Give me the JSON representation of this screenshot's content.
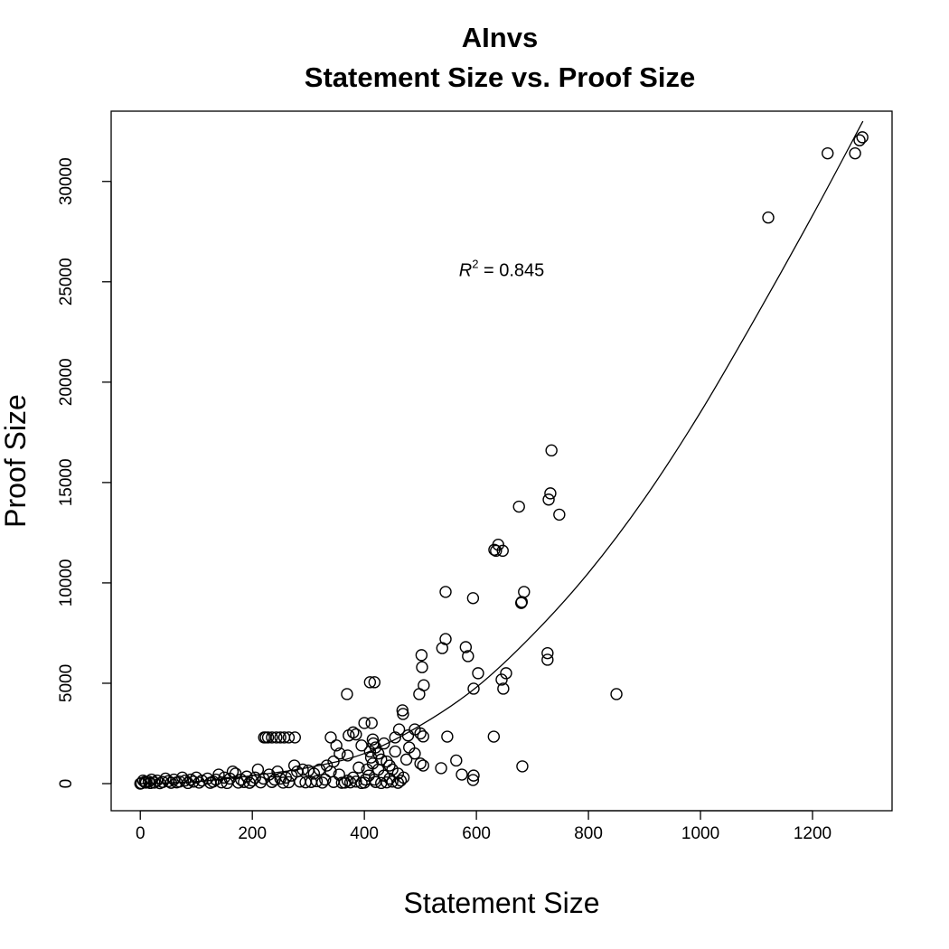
{
  "chart_data": {
    "type": "scatter",
    "title": "AInvs",
    "subtitle": "Statement Size vs. Proof Size",
    "xlabel": "Statement Size",
    "ylabel": "Proof Size",
    "xlim": [
      -52,
      1342
    ],
    "ylim": [
      -1350,
      33500
    ],
    "xticks": [
      0,
      200,
      400,
      600,
      800,
      1000,
      1200
    ],
    "yticks": [
      0,
      5000,
      10000,
      15000,
      20000,
      25000,
      30000
    ],
    "grid": false,
    "marker": "open-circle",
    "annotation": {
      "label_base": "R",
      "label_sup": "2",
      "text": " = 0.845",
      "x": 645,
      "y": 25600
    },
    "fit_curve": [
      [
        0,
        0
      ],
      [
        100,
        100
      ],
      [
        200,
        400
      ],
      [
        300,
        800
      ],
      [
        400,
        1500
      ],
      [
        500,
        2900
      ],
      [
        600,
        4800
      ],
      [
        700,
        7400
      ],
      [
        800,
        10500
      ],
      [
        900,
        14200
      ],
      [
        1000,
        18500
      ],
      [
        1100,
        23300
      ],
      [
        1200,
        28300
      ],
      [
        1290,
        33000
      ]
    ],
    "points": [
      [
        1227,
        31400
      ],
      [
        1289,
        32200
      ],
      [
        1284,
        32050
      ],
      [
        1276,
        31400
      ],
      [
        1121,
        28200
      ],
      [
        734,
        16600
      ],
      [
        732,
        14460
      ],
      [
        729,
        14150
      ],
      [
        748,
        13400
      ],
      [
        676,
        13800
      ],
      [
        632,
        11650
      ],
      [
        635,
        11600
      ],
      [
        647,
        11600
      ],
      [
        639,
        11900
      ],
      [
        545,
        9550
      ],
      [
        594,
        9240
      ],
      [
        685,
        9550
      ],
      [
        681,
        9050
      ],
      [
        680,
        9000
      ],
      [
        545,
        7200
      ],
      [
        539,
        6750
      ],
      [
        581,
        6800
      ],
      [
        585,
        6350
      ],
      [
        502,
        6400
      ],
      [
        503,
        5800
      ],
      [
        727,
        6500
      ],
      [
        727,
        6170
      ],
      [
        603,
        5500
      ],
      [
        653,
        5500
      ],
      [
        645,
        5180
      ],
      [
        648,
        4730
      ],
      [
        595,
        4730
      ],
      [
        506,
        4900
      ],
      [
        498,
        4460
      ],
      [
        369,
        4460
      ],
      [
        410,
        5050
      ],
      [
        418,
        5050
      ],
      [
        850,
        4460
      ],
      [
        631,
        2340
      ],
      [
        682,
        860
      ],
      [
        595,
        400
      ],
      [
        594,
        180
      ],
      [
        574,
        450
      ],
      [
        537,
        770
      ],
      [
        564,
        1150
      ],
      [
        400,
        3020
      ],
      [
        413,
        3020
      ],
      [
        469,
        3470
      ],
      [
        468,
        3650
      ],
      [
        462,
        2700
      ],
      [
        490,
        2700
      ],
      [
        455,
        2300
      ],
      [
        478,
        2400
      ],
      [
        500,
        2500
      ],
      [
        505,
        2350
      ],
      [
        548,
        2340
      ],
      [
        372,
        2400
      ],
      [
        380,
        2550
      ],
      [
        385,
        2450
      ],
      [
        340,
        2300
      ],
      [
        350,
        1900
      ],
      [
        356,
        1500
      ],
      [
        370,
        1400
      ],
      [
        345,
        1100
      ],
      [
        221,
        2300
      ],
      [
        224,
        2300
      ],
      [
        228,
        2300
      ],
      [
        235,
        2300
      ],
      [
        243,
        2300
      ],
      [
        250,
        2300
      ],
      [
        257,
        2300
      ],
      [
        265,
        2300
      ],
      [
        276,
        2300
      ],
      [
        410,
        1600
      ],
      [
        412,
        1300
      ],
      [
        415,
        1000
      ],
      [
        405,
        700
      ],
      [
        408,
        400
      ],
      [
        418,
        200
      ],
      [
        420,
        1800
      ],
      [
        425,
        1500
      ],
      [
        430,
        1200
      ],
      [
        440,
        1100
      ],
      [
        445,
        900
      ],
      [
        450,
        700
      ],
      [
        460,
        500
      ],
      [
        470,
        300
      ],
      [
        480,
        1800
      ],
      [
        490,
        1500
      ],
      [
        500,
        1000
      ],
      [
        505,
        900
      ],
      [
        475,
        1200
      ],
      [
        455,
        1600
      ],
      [
        435,
        2000
      ],
      [
        395,
        1900
      ],
      [
        390,
        800
      ],
      [
        380,
        300
      ],
      [
        370,
        150
      ],
      [
        365,
        50
      ],
      [
        355,
        450
      ],
      [
        340,
        600
      ],
      [
        333,
        900
      ],
      [
        330,
        200
      ],
      [
        320,
        700
      ],
      [
        310,
        500
      ],
      [
        300,
        650
      ],
      [
        290,
        700
      ],
      [
        280,
        600
      ],
      [
        270,
        400
      ],
      [
        260,
        300
      ],
      [
        275,
        900
      ],
      [
        250,
        250
      ],
      [
        245,
        600
      ],
      [
        240,
        200
      ],
      [
        230,
        450
      ],
      [
        220,
        250
      ],
      [
        210,
        700
      ],
      [
        205,
        300
      ],
      [
        200,
        150
      ],
      [
        190,
        350
      ],
      [
        180,
        200
      ],
      [
        170,
        500
      ],
      [
        165,
        600
      ],
      [
        160,
        250
      ],
      [
        150,
        300
      ],
      [
        140,
        450
      ],
      [
        135,
        200
      ],
      [
        130,
        100
      ],
      [
        120,
        250
      ],
      [
        110,
        150
      ],
      [
        100,
        300
      ],
      [
        95,
        100
      ],
      [
        90,
        200
      ],
      [
        80,
        150
      ],
      [
        75,
        300
      ],
      [
        70,
        100
      ],
      [
        60,
        200
      ],
      [
        50,
        120
      ],
      [
        45,
        250
      ],
      [
        40,
        80
      ],
      [
        30,
        150
      ],
      [
        25,
        50
      ],
      [
        20,
        200
      ],
      [
        15,
        100
      ],
      [
        10,
        50
      ],
      [
        5,
        150
      ],
      [
        2,
        20
      ],
      [
        0,
        0
      ],
      [
        8,
        80
      ],
      [
        18,
        30
      ],
      [
        35,
        20
      ],
      [
        55,
        40
      ],
      [
        65,
        60
      ],
      [
        85,
        30
      ],
      [
        105,
        50
      ],
      [
        125,
        40
      ],
      [
        145,
        60
      ],
      [
        155,
        30
      ],
      [
        175,
        50
      ],
      [
        185,
        80
      ],
      [
        195,
        40
      ],
      [
        215,
        60
      ],
      [
        235,
        80
      ],
      [
        255,
        50
      ],
      [
        265,
        70
      ],
      [
        285,
        100
      ],
      [
        295,
        60
      ],
      [
        305,
        80
      ],
      [
        315,
        120
      ],
      [
        325,
        50
      ],
      [
        345,
        80
      ],
      [
        360,
        40
      ],
      [
        375,
        60
      ],
      [
        385,
        100
      ],
      [
        395,
        30
      ],
      [
        400,
        50
      ],
      [
        402,
        200
      ],
      [
        420,
        80
      ],
      [
        430,
        30
      ],
      [
        440,
        60
      ],
      [
        450,
        100
      ],
      [
        460,
        40
      ],
      [
        465,
        150
      ],
      [
        435,
        400
      ],
      [
        445,
        250
      ],
      [
        425,
        700
      ],
      [
        415,
        2200
      ],
      [
        416,
        2000
      ]
    ]
  }
}
